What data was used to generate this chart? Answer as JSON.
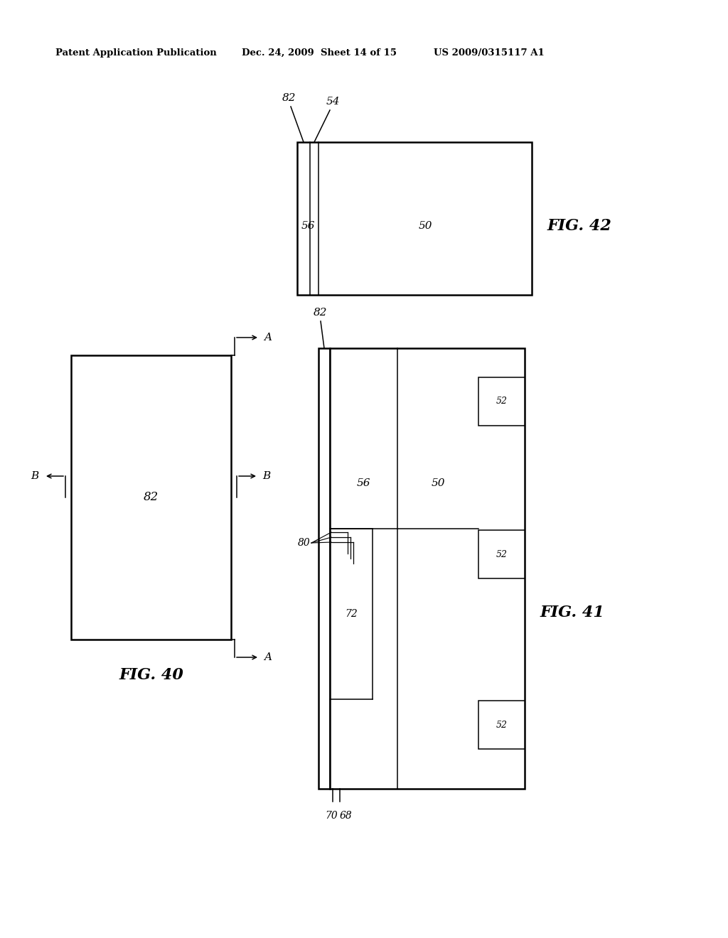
{
  "header_left": "Patent Application Publication",
  "header_mid": "Dec. 24, 2009  Sheet 14 of 15",
  "header_right": "US 2009/0315117 A1",
  "background": "#ffffff",
  "fig40_label": "FIG. 40",
  "fig41_label": "FIG. 41",
  "fig42_label": "FIG. 42",
  "lw_main": 1.8,
  "lw_thin": 1.1,
  "lw_vt": 0.8,
  "font_label": 11,
  "font_fig": 16,
  "font_header": 9.5
}
